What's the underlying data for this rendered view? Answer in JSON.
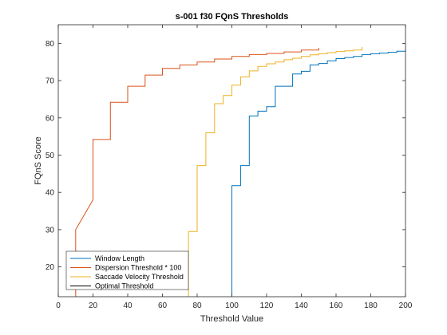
{
  "chart_data": {
    "type": "line",
    "title": "s-001 f30 FQnS Thresholds",
    "xlabel": "Threshold Value",
    "ylabel": "FQnS Score",
    "xlim": [
      0,
      200
    ],
    "ylim": [
      12,
      85
    ],
    "xticks": [
      "0",
      "20",
      "40",
      "60",
      "80",
      "100",
      "120",
      "140",
      "160",
      "180",
      "200"
    ],
    "yticks": [
      "20",
      "30",
      "40",
      "50",
      "60",
      "70",
      "80"
    ],
    "grid": false,
    "legend_position": "bottom-left",
    "series": [
      {
        "name": "Window Length",
        "color": "#0072BD",
        "x": [
          100,
          100,
          100,
          105,
          105,
          110,
          110,
          115,
          115,
          120,
          120,
          125,
          125,
          130,
          130,
          135,
          135,
          140,
          140,
          145,
          145,
          150,
          150,
          155,
          155,
          160,
          160,
          165,
          165,
          170,
          170,
          175,
          175,
          180,
          180,
          185,
          185,
          190,
          190,
          195,
          195,
          200,
          200
        ],
        "y": [
          12,
          41.8,
          41.8,
          41.8,
          47.2,
          47.2,
          60.5,
          60.5,
          61.8,
          61.8,
          63.0,
          63.0,
          68.5,
          68.5,
          68.5,
          68.5,
          71.8,
          71.8,
          72.5,
          72.5,
          74.2,
          74.2,
          74.6,
          74.6,
          75.3,
          75.3,
          75.9,
          75.9,
          76.2,
          76.2,
          76.5,
          76.5,
          77.0,
          77.0,
          77.2,
          77.2,
          77.4,
          77.4,
          77.6,
          77.6,
          77.9,
          77.9,
          78.5
        ]
      },
      {
        "name": "Dispersion Threshold * 100",
        "color": "#D95319",
        "x": [
          10,
          10,
          10,
          20,
          20,
          30,
          30,
          40,
          40,
          50,
          50,
          60,
          60,
          70,
          70,
          80,
          80,
          90,
          90,
          100,
          100,
          110,
          110,
          120,
          120,
          130,
          130,
          140,
          140,
          150,
          150
        ],
        "y": [
          12,
          30.0,
          30.0,
          38.0,
          54.2,
          54.2,
          64.2,
          64.2,
          68.5,
          68.5,
          71.5,
          71.5,
          73.3,
          73.3,
          74.2,
          74.2,
          75.0,
          75.0,
          75.8,
          75.8,
          76.5,
          76.5,
          77.0,
          77.0,
          77.3,
          77.3,
          77.7,
          77.7,
          78.2,
          78.2,
          78.8
        ]
      },
      {
        "name": "Saccade Velocity Threshold",
        "color": "#EDB120",
        "x": [
          75,
          75,
          75,
          80,
          80,
          85,
          85,
          90,
          90,
          95,
          95,
          100,
          100,
          105,
          105,
          110,
          110,
          115,
          115,
          120,
          120,
          125,
          125,
          130,
          130,
          135,
          135,
          140,
          140,
          145,
          145,
          150,
          150,
          155,
          155,
          160,
          160,
          165,
          165,
          170,
          170,
          175,
          175
        ],
        "y": [
          12,
          29.5,
          29.5,
          29.5,
          47.2,
          47.2,
          56.0,
          56.0,
          63.8,
          63.8,
          66.0,
          66.0,
          68.8,
          68.8,
          71.0,
          71.0,
          72.6,
          72.6,
          73.8,
          73.8,
          74.5,
          74.5,
          75.0,
          75.0,
          75.6,
          75.6,
          76.0,
          76.0,
          76.5,
          76.5,
          76.9,
          76.9,
          77.2,
          77.2,
          77.5,
          77.5,
          77.8,
          77.8,
          78.0,
          78.0,
          78.2,
          78.2,
          79.0
        ]
      },
      {
        "name": "Optimal Threshold",
        "color": "#000000",
        "x": [],
        "y": []
      }
    ]
  }
}
